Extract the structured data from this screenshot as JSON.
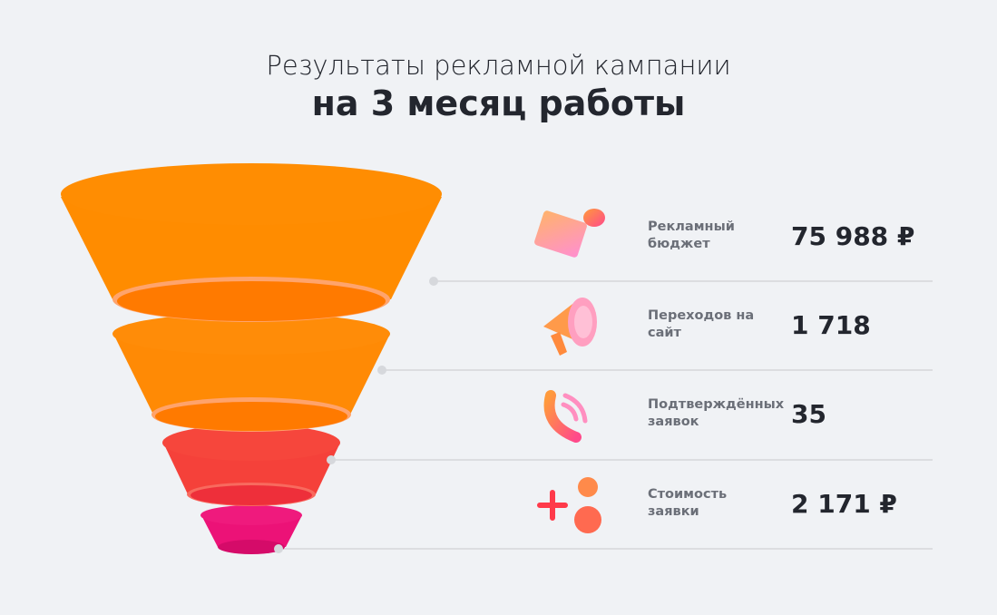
{
  "title": {
    "line1": "Результаты рекламной кампании",
    "line2": "на 3 месяц работы"
  },
  "colors": {
    "background": "#f0f2f5",
    "stage1": "#ff8c00",
    "stage2": "#ff8a05",
    "stage3": "#f5413a",
    "stage4": "#ec1277",
    "divider": "#dcdde0"
  },
  "metrics": [
    {
      "icon": "credit-card-coin-icon",
      "label_line1": "Рекламный",
      "label_line2": "бюджет",
      "value": "75 988 ₽"
    },
    {
      "icon": "megaphone-icon",
      "label_line1": "Переходов на",
      "label_line2": "сайт",
      "value": "1 718"
    },
    {
      "icon": "phone-call-icon",
      "label_line1": "Подтверждённых",
      "label_line2": "заявок",
      "value": "35"
    },
    {
      "icon": "plus-user-icon",
      "label_line1": "Стоимость",
      "label_line2": "заявки",
      "value": "2 171 ₽"
    }
  ]
}
